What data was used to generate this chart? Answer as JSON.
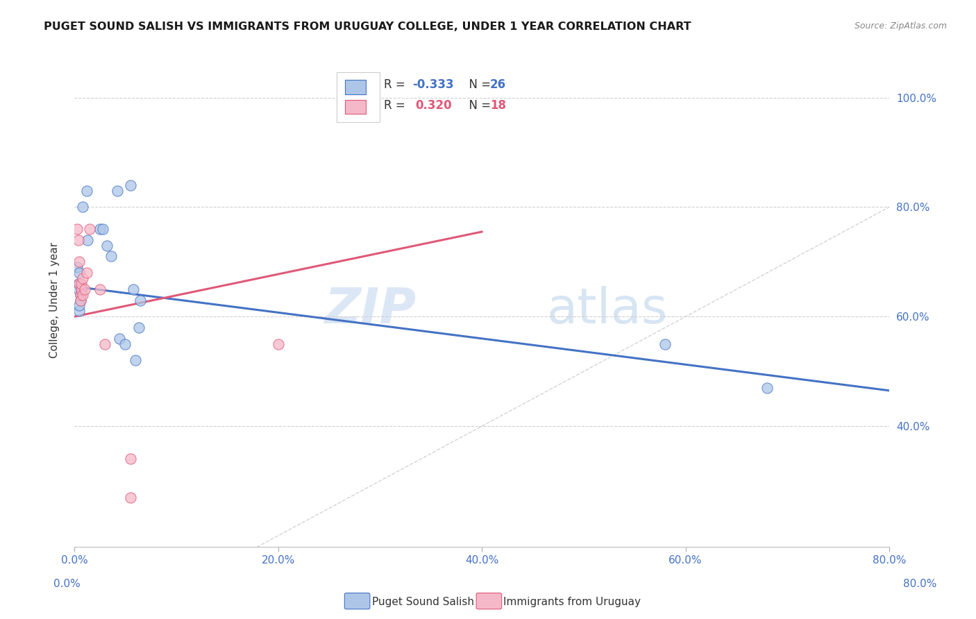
{
  "title": "PUGET SOUND SALISH VS IMMIGRANTS FROM URUGUAY COLLEGE, UNDER 1 YEAR CORRELATION CHART",
  "source": "Source: ZipAtlas.com",
  "ylabel_label": "College, Under 1 year",
  "xlim": [
    0.0,
    0.8
  ],
  "ylim": [
    0.18,
    1.08
  ],
  "xticks": [
    0.0,
    0.2,
    0.4,
    0.6,
    0.8
  ],
  "yticks": [
    0.4,
    0.6,
    0.8,
    1.0
  ],
  "blue_R": -0.333,
  "blue_N": 26,
  "pink_R": 0.32,
  "pink_N": 18,
  "blue_scatter_x": [
    0.003,
    0.012,
    0.008,
    0.013,
    0.004,
    0.005,
    0.006,
    0.004,
    0.005,
    0.006,
    0.005,
    0.007,
    0.025,
    0.028,
    0.032,
    0.036,
    0.055,
    0.042,
    0.058,
    0.065,
    0.063,
    0.044,
    0.05,
    0.06,
    0.58,
    0.68
  ],
  "blue_scatter_y": [
    0.69,
    0.83,
    0.8,
    0.74,
    0.66,
    0.68,
    0.63,
    0.65,
    0.61,
    0.64,
    0.62,
    0.65,
    0.76,
    0.76,
    0.73,
    0.71,
    0.84,
    0.83,
    0.65,
    0.63,
    0.58,
    0.56,
    0.55,
    0.52,
    0.55,
    0.47
  ],
  "pink_scatter_x": [
    0.003,
    0.004,
    0.005,
    0.005,
    0.006,
    0.006,
    0.007,
    0.007,
    0.008,
    0.008,
    0.01,
    0.012,
    0.015,
    0.025,
    0.03,
    0.2,
    0.055,
    0.055
  ],
  "pink_scatter_y": [
    0.76,
    0.74,
    0.7,
    0.66,
    0.64,
    0.63,
    0.65,
    0.66,
    0.67,
    0.64,
    0.65,
    0.68,
    0.76,
    0.65,
    0.55,
    0.55,
    0.34,
    0.27
  ],
  "blue_line_x": [
    0.0,
    0.8
  ],
  "blue_line_y": [
    0.655,
    0.465
  ],
  "pink_line_x": [
    0.0,
    0.4
  ],
  "pink_line_y": [
    0.6,
    0.755
  ],
  "blue_color": "#adc6e8",
  "pink_color": "#f5b8c8",
  "blue_line_color": "#4472c4",
  "pink_line_color": "#e05878",
  "diag_color": "#c8c8c8",
  "watermark_zip": "ZIP",
  "watermark_atlas": "atlas",
  "legend_blue_label": "Puget Sound Salish",
  "legend_pink_label": "Immigrants from Uruguay",
  "tick_color": "#4472c4"
}
